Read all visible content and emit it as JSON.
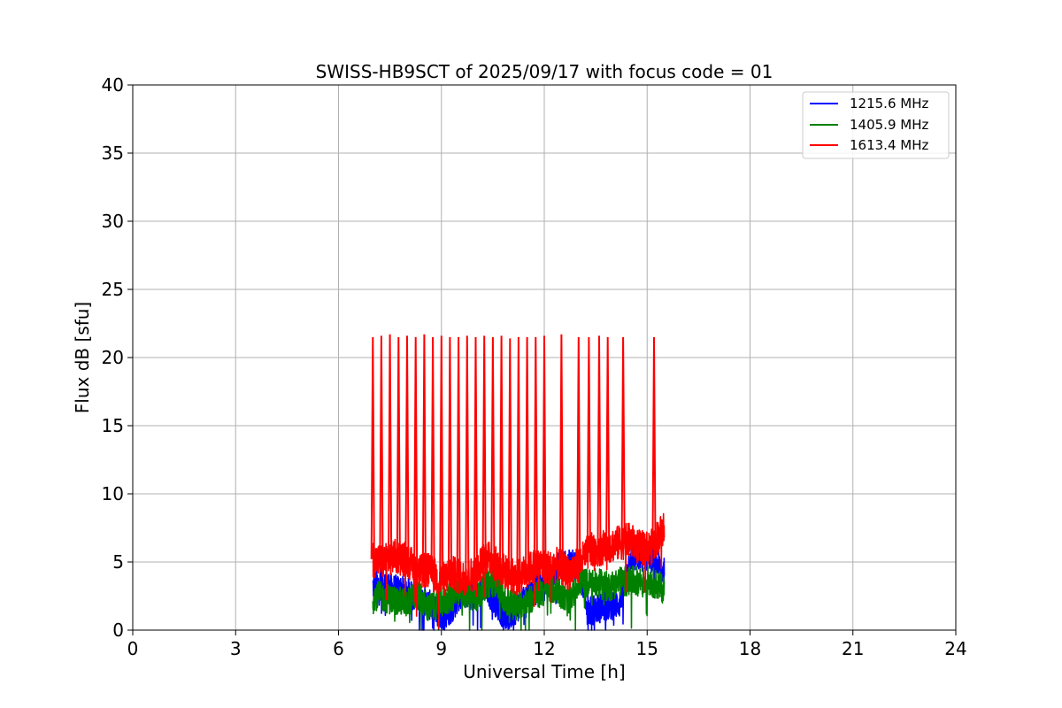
{
  "chart_data": {
    "type": "line",
    "title": "SWISS-HB9SCT of 2025/09/17 with focus code = 01",
    "xlabel": "Universal Time [h]",
    "ylabel": "Flux dB [sfu]",
    "xlim": [
      0,
      24
    ],
    "ylim": [
      0,
      40
    ],
    "xticks": [
      0,
      3,
      6,
      9,
      12,
      15,
      18,
      21,
      24
    ],
    "yticks": [
      0,
      5,
      10,
      15,
      20,
      25,
      30,
      35,
      40
    ],
    "xtick_labels": [
      "0",
      "3",
      "6",
      "9",
      "12",
      "15",
      "18",
      "21",
      "24"
    ],
    "ytick_labels": [
      "0",
      "5",
      "10",
      "15",
      "20",
      "25",
      "30",
      "35",
      "40"
    ],
    "grid": true,
    "legend_position": "top-right",
    "series": [
      {
        "name": "1215.6 MHz",
        "color": "#0000ff",
        "x": [
          7.0,
          7.3,
          7.6,
          8.0,
          8.3,
          8.6,
          9.0,
          9.3,
          9.6,
          10.0,
          10.3,
          10.6,
          10.9,
          11.2,
          11.5,
          11.8,
          12.1,
          12.4,
          12.7,
          13.0,
          13.3,
          13.6,
          13.9,
          14.2,
          14.5,
          14.8,
          15.1,
          15.5
        ],
        "y": [
          3.2,
          3.5,
          3.0,
          2.8,
          2.4,
          2.0,
          1.0,
          1.6,
          2.8,
          2.4,
          3.0,
          2.0,
          0.8,
          1.6,
          2.6,
          3.0,
          3.4,
          4.6,
          4.8,
          4.8,
          1.4,
          1.6,
          1.8,
          2.0,
          5.2,
          5.4,
          5.4,
          4.2
        ]
      },
      {
        "name": "1405.9 MHz",
        "color": "#008000",
        "x": [
          7.0,
          7.3,
          7.6,
          8.0,
          8.3,
          8.6,
          9.0,
          9.3,
          9.6,
          10.0,
          10.3,
          10.6,
          10.9,
          11.2,
          11.5,
          11.8,
          12.1,
          12.4,
          12.7,
          13.0,
          13.3,
          13.6,
          13.9,
          14.2,
          14.5,
          14.8,
          15.1,
          15.5
        ],
        "y": [
          2.6,
          2.4,
          2.2,
          2.0,
          2.6,
          1.6,
          2.0,
          2.4,
          2.8,
          2.2,
          3.4,
          3.6,
          2.0,
          1.8,
          2.2,
          2.6,
          3.0,
          3.0,
          2.0,
          3.6,
          3.4,
          3.4,
          3.2,
          3.6,
          3.6,
          3.6,
          3.6,
          3.0
        ]
      },
      {
        "name": "1613.4 MHz",
        "color": "#ff0000",
        "x": [
          7.0,
          7.3,
          7.6,
          8.0,
          8.3,
          8.6,
          9.0,
          9.3,
          9.6,
          10.0,
          10.3,
          10.6,
          10.9,
          11.2,
          11.5,
          11.8,
          12.1,
          12.4,
          12.7,
          13.0,
          13.3,
          13.6,
          13.9,
          14.2,
          14.5,
          14.8,
          15.1,
          15.5
        ],
        "y": [
          5.2,
          5.0,
          5.4,
          5.2,
          4.2,
          4.4,
          3.6,
          4.2,
          3.8,
          4.2,
          5.4,
          4.8,
          4.2,
          3.8,
          4.4,
          4.8,
          4.6,
          4.8,
          4.2,
          4.8,
          5.8,
          6.0,
          6.2,
          6.4,
          6.6,
          6.0,
          6.0,
          7.6
        ],
        "spikes_x": [
          7.0,
          7.25,
          7.5,
          7.75,
          8.0,
          8.25,
          8.5,
          8.75,
          9.0,
          9.25,
          9.5,
          9.75,
          10.0,
          10.25,
          10.5,
          10.75,
          11.0,
          11.25,
          11.5,
          11.75,
          12.0,
          12.5,
          13.0,
          13.3,
          13.6,
          13.85,
          14.3,
          15.2
        ],
        "spikes_y": [
          21.5,
          21.6,
          21.7,
          21.5,
          21.6,
          21.5,
          21.7,
          21.5,
          21.6,
          21.5,
          21.5,
          21.6,
          21.5,
          21.6,
          21.5,
          21.6,
          21.4,
          21.5,
          21.5,
          21.5,
          21.6,
          21.7,
          21.5,
          21.5,
          21.6,
          21.5,
          21.5,
          21.5
        ]
      }
    ]
  }
}
